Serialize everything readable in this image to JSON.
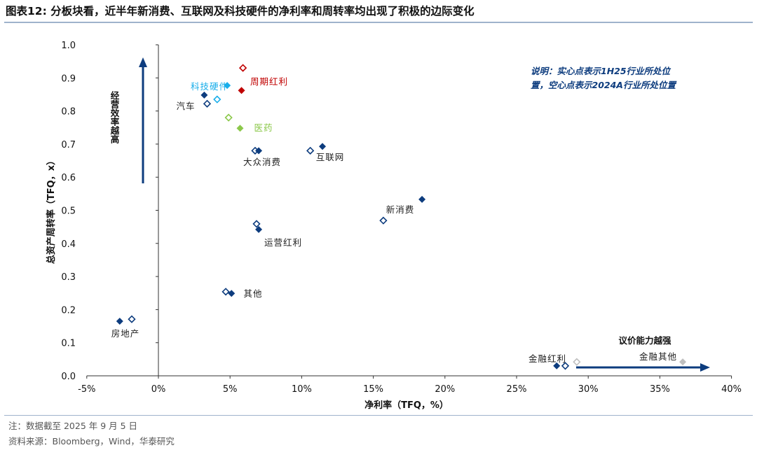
{
  "title": "图表12:  分板块看，近半年新消费、互联网及科技硬件的净利率和周转率均出现了积极的边际变化",
  "footnotes": {
    "note": "注：数据截至 2025 年 9 月 5 日",
    "source": "资料来源：Bloomberg，Wind，华泰研究"
  },
  "chart_data": {
    "type": "scatter",
    "xlabel": "净利率（TFQ，%）",
    "ylabel": "总资产周转率（TFQ，x）",
    "xlim": [
      -5,
      40
    ],
    "ylim": [
      0,
      1.0
    ],
    "x_ticks": [
      "-5%",
      "0%",
      "5%",
      "10%",
      "15%",
      "20%",
      "25%",
      "30%",
      "35%",
      "40%"
    ],
    "y_ticks": [
      "0.0",
      "0.1",
      "0.2",
      "0.3",
      "0.4",
      "0.5",
      "0.6",
      "0.7",
      "0.8",
      "0.9",
      "1.0"
    ],
    "legend_note": [
      "说明：实心点表示1H25行业所处位",
      "置，空心点表示2024A行业所处位置"
    ],
    "annotations": {
      "vertical_arrow": "经营效率越高",
      "horizontal_arrow": "议价能力越强"
    },
    "series": [
      {
        "name": "汽车",
        "color": "#0d3c7e",
        "solid": [
          3.2,
          0.848
        ],
        "hollow": [
          3.4,
          0.822
        ]
      },
      {
        "name": "科技硬件",
        "color": "#19aeea",
        "solid": [
          4.8,
          0.877
        ],
        "hollow": [
          4.1,
          0.835
        ]
      },
      {
        "name": "周期红利",
        "color": "#c00000",
        "solid": [
          5.8,
          0.862
        ],
        "hollow": [
          5.9,
          0.93
        ]
      },
      {
        "name": "医药",
        "color": "#8cc84b",
        "solid": [
          5.7,
          0.748
        ],
        "hollow": [
          4.9,
          0.78
        ]
      },
      {
        "name": "大众消费",
        "color": "#0d3c7e",
        "solid": [
          7.0,
          0.68
        ],
        "hollow": [
          6.75,
          0.68
        ]
      },
      {
        "name": "互联网",
        "color": "#0d3c7e",
        "solid": [
          11.45,
          0.693
        ],
        "hollow": [
          10.6,
          0.68
        ]
      },
      {
        "name": "新消费",
        "color": "#0d3c7e",
        "solid": [
          18.4,
          0.533
        ],
        "hollow": [
          15.7,
          0.469
        ]
      },
      {
        "name": "运营红利",
        "color": "#0d3c7e",
        "solid": [
          7.0,
          0.442
        ],
        "hollow": [
          6.85,
          0.459
        ]
      },
      {
        "name": "其他",
        "color": "#0d3c7e",
        "solid": [
          5.1,
          0.249
        ],
        "hollow": [
          4.7,
          0.254
        ]
      },
      {
        "name": "房地产",
        "color": "#0d3c7e",
        "solid": [
          -2.7,
          0.165
        ],
        "hollow": [
          -1.86,
          0.171
        ]
      },
      {
        "name": "金融红利",
        "color": "#0d3c7e",
        "solid": [
          27.8,
          0.03
        ],
        "hollow": [
          28.4,
          0.03
        ]
      },
      {
        "name": "金融其他",
        "color": "#bfbfbf",
        "solid": [
          36.6,
          0.042
        ],
        "hollow": [
          29.2,
          0.042
        ]
      }
    ]
  }
}
